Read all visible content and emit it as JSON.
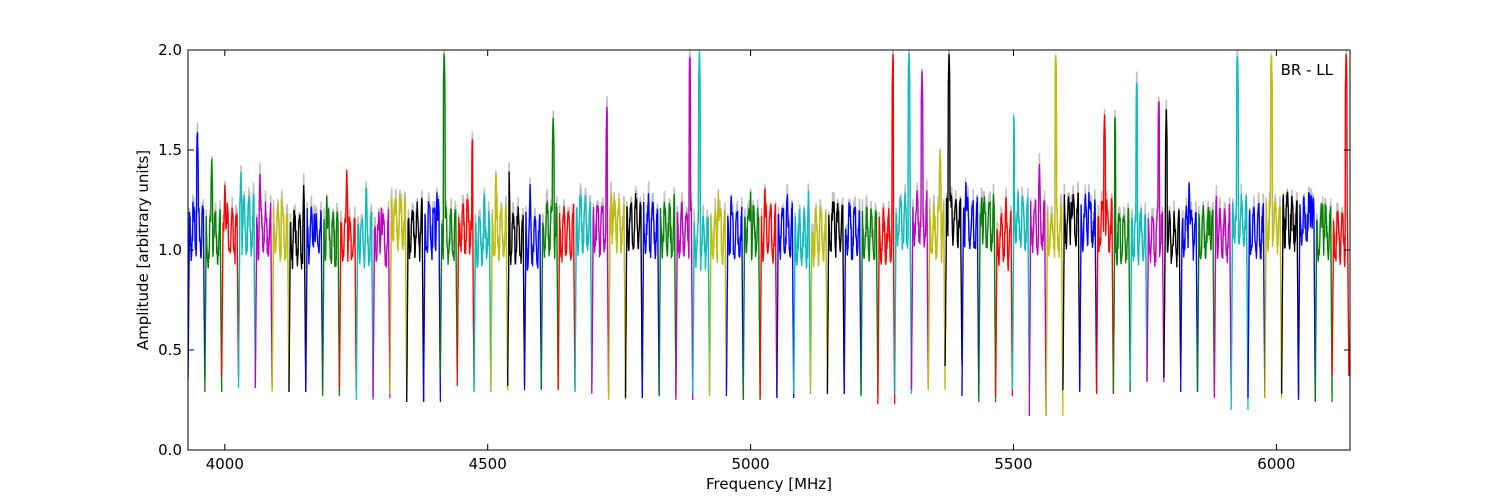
{
  "chart_data": {
    "type": "line",
    "title": "",
    "annotation": "BR - LL",
    "xlabel": "Frequency [MHz]",
    "ylabel": "Amplitude [arbitrary units]",
    "xlim": [
      3930,
      6140
    ],
    "ylim": [
      0.0,
      2.0
    ],
    "xticks": [
      4000,
      4500,
      5000,
      5500,
      6000
    ],
    "yticks": [
      0.0,
      0.5,
      1.0,
      1.5,
      2.0
    ],
    "ytick_labels": [
      "0.0",
      "0.5",
      "1.0",
      "1.5",
      "2.0"
    ],
    "grid": false,
    "legend": "none",
    "series_colors": [
      "#0000ff",
      "#008000",
      "#ff0000",
      "#00bfbf",
      "#bf00bf",
      "#bfbf00",
      "#000000"
    ],
    "background_color": "#c0c0c0",
    "channel_width_mhz": 32,
    "first_channel_start_mhz": 3930,
    "channels": [
      {
        "start": 3930,
        "min": 0.35,
        "max": 1.62,
        "color": "#0000ff"
      },
      {
        "start": 3962,
        "min": 0.29,
        "max": 1.47,
        "color": "#008000"
      },
      {
        "start": 3994,
        "min": 0.37,
        "max": 1.35,
        "color": "#ff0000"
      },
      {
        "start": 4026,
        "min": 0.31,
        "max": 1.4,
        "color": "#00bfbf"
      },
      {
        "start": 4058,
        "min": 0.31,
        "max": 1.4,
        "color": "#bf00bf"
      },
      {
        "start": 4090,
        "min": 0.29,
        "max": 1.3,
        "color": "#bfbf00"
      },
      {
        "start": 4122,
        "min": 0.29,
        "max": 1.34,
        "color": "#000000"
      },
      {
        "start": 4154,
        "min": 0.3,
        "max": 1.22,
        "color": "#0000ff"
      },
      {
        "start": 4186,
        "min": 0.27,
        "max": 1.28,
        "color": "#008000"
      },
      {
        "start": 4218,
        "min": 0.3,
        "max": 1.4,
        "color": "#ff0000"
      },
      {
        "start": 4250,
        "min": 0.25,
        "max": 1.35,
        "color": "#00bfbf"
      },
      {
        "start": 4282,
        "min": 0.26,
        "max": 1.22,
        "color": "#bf00bf"
      },
      {
        "start": 4314,
        "min": 0.28,
        "max": 1.3,
        "color": "#bfbf00"
      },
      {
        "start": 4346,
        "min": 0.24,
        "max": 1.28,
        "color": "#000000"
      },
      {
        "start": 4378,
        "min": 0.24,
        "max": 1.3,
        "color": "#0000ff"
      },
      {
        "start": 4410,
        "min": 0.38,
        "max": 2.0,
        "color": "#008000"
      },
      {
        "start": 4442,
        "min": 0.32,
        "max": 1.59,
        "color": "#ff0000"
      },
      {
        "start": 4474,
        "min": 0.29,
        "max": 1.32,
        "color": "#00bfbf"
      },
      {
        "start": 4506,
        "min": 0.3,
        "max": 1.42,
        "color": "#bfbf00"
      },
      {
        "start": 4538,
        "min": 0.32,
        "max": 1.4,
        "color": "#000000"
      },
      {
        "start": 4570,
        "min": 0.3,
        "max": 1.33,
        "color": "#0000ff"
      },
      {
        "start": 4602,
        "min": 0.3,
        "max": 1.68,
        "color": "#008000"
      },
      {
        "start": 4634,
        "min": 0.3,
        "max": 1.2,
        "color": "#ff0000"
      },
      {
        "start": 4666,
        "min": 0.29,
        "max": 1.3,
        "color": "#00bfbf"
      },
      {
        "start": 4698,
        "min": 0.28,
        "max": 1.74,
        "color": "#bf00bf"
      },
      {
        "start": 4730,
        "min": 0.25,
        "max": 1.32,
        "color": "#bfbf00"
      },
      {
        "start": 4762,
        "min": 0.26,
        "max": 1.3,
        "color": "#000000"
      },
      {
        "start": 4794,
        "min": 0.27,
        "max": 1.29,
        "color": "#0000ff"
      },
      {
        "start": 4826,
        "min": 0.27,
        "max": 1.3,
        "color": "#008000"
      },
      {
        "start": 4858,
        "min": 0.25,
        "max": 2.0,
        "color": "#bf00bf"
      },
      {
        "start": 4890,
        "min": 0.28,
        "max": 2.0,
        "color": "#00bfbf"
      },
      {
        "start": 4922,
        "min": 0.27,
        "max": 1.3,
        "color": "#bfbf00"
      },
      {
        "start": 4954,
        "min": 0.27,
        "max": 1.3,
        "color": "#0000ff"
      },
      {
        "start": 4986,
        "min": 0.25,
        "max": 1.3,
        "color": "#008000"
      },
      {
        "start": 5018,
        "min": 0.26,
        "max": 1.33,
        "color": "#ff0000"
      },
      {
        "start": 5050,
        "min": 0.26,
        "max": 1.31,
        "color": "#0000ff"
      },
      {
        "start": 5082,
        "min": 0.28,
        "max": 1.3,
        "color": "#00bfbf"
      },
      {
        "start": 5114,
        "min": 0.29,
        "max": 1.25,
        "color": "#bfbf00"
      },
      {
        "start": 5146,
        "min": 0.28,
        "max": 1.25,
        "color": "#000000"
      },
      {
        "start": 5178,
        "min": 0.28,
        "max": 1.25,
        "color": "#0000ff"
      },
      {
        "start": 5210,
        "min": 0.27,
        "max": 1.22,
        "color": "#008000"
      },
      {
        "start": 5242,
        "min": 0.23,
        "max": 2.0,
        "color": "#ff0000"
      },
      {
        "start": 5274,
        "min": 0.28,
        "max": 2.0,
        "color": "#00bfbf"
      },
      {
        "start": 5306,
        "min": 0.3,
        "max": 1.9,
        "color": "#bf00bf"
      },
      {
        "start": 5338,
        "min": 0.3,
        "max": 1.52,
        "color": "#bfbf00"
      },
      {
        "start": 5370,
        "min": 0.42,
        "max": 2.0,
        "color": "#000000"
      },
      {
        "start": 5402,
        "min": 0.27,
        "max": 1.35,
        "color": "#0000ff"
      },
      {
        "start": 5434,
        "min": 0.24,
        "max": 1.3,
        "color": "#008000"
      },
      {
        "start": 5466,
        "min": 0.27,
        "max": 1.3,
        "color": "#ff0000"
      },
      {
        "start": 5498,
        "min": 0.3,
        "max": 1.75,
        "color": "#00bfbf"
      },
      {
        "start": 5530,
        "min": 0.17,
        "max": 1.45,
        "color": "#bf00bf"
      },
      {
        "start": 5562,
        "min": 0.17,
        "max": 2.0,
        "color": "#bfbf00"
      },
      {
        "start": 5594,
        "min": 0.3,
        "max": 1.27,
        "color": "#000000"
      },
      {
        "start": 5626,
        "min": 0.29,
        "max": 1.3,
        "color": "#0000ff"
      },
      {
        "start": 5658,
        "min": 0.28,
        "max": 1.7,
        "color": "#ff0000"
      },
      {
        "start": 5690,
        "min": 0.29,
        "max": 1.7,
        "color": "#008000"
      },
      {
        "start": 5722,
        "min": 0.34,
        "max": 1.87,
        "color": "#00bfbf"
      },
      {
        "start": 5754,
        "min": 0.34,
        "max": 1.78,
        "color": "#bf00bf"
      },
      {
        "start": 5786,
        "min": 0.36,
        "max": 1.71,
        "color": "#000000"
      },
      {
        "start": 5818,
        "min": 0.29,
        "max": 1.35,
        "color": "#0000ff"
      },
      {
        "start": 5850,
        "min": 0.29,
        "max": 1.22,
        "color": "#008000"
      },
      {
        "start": 5882,
        "min": 0.26,
        "max": 1.3,
        "color": "#bf00bf"
      },
      {
        "start": 5914,
        "min": 0.2,
        "max": 2.0,
        "color": "#00bfbf"
      },
      {
        "start": 5946,
        "min": 0.26,
        "max": 1.24,
        "color": "#0000ff"
      },
      {
        "start": 5978,
        "min": 0.26,
        "max": 2.0,
        "color": "#bfbf00"
      },
      {
        "start": 6010,
        "min": 0.28,
        "max": 1.25,
        "color": "#000000"
      },
      {
        "start": 6042,
        "min": 0.25,
        "max": 1.3,
        "color": "#0000ff"
      },
      {
        "start": 6074,
        "min": 0.24,
        "max": 1.25,
        "color": "#008000"
      },
      {
        "start": 6106,
        "min": 0.37,
        "max": 2.0,
        "color": "#ff0000"
      }
    ]
  }
}
